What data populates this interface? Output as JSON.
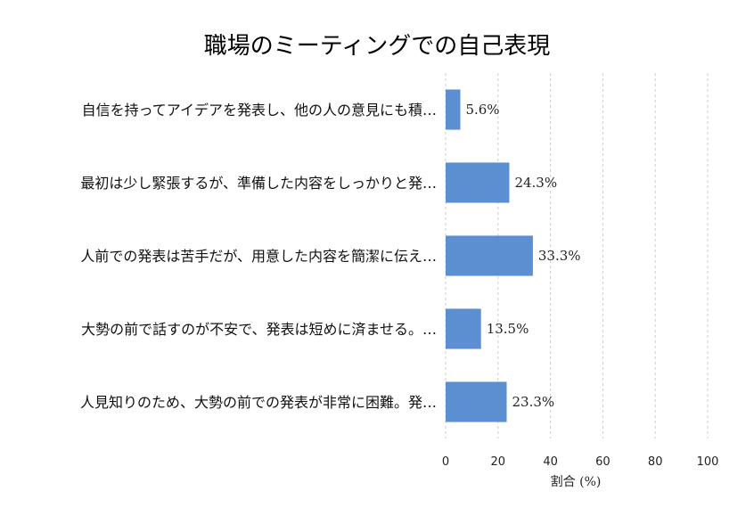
{
  "chart_data": {
    "type": "bar",
    "orientation": "horizontal",
    "title": "職場のミーティングでの自己表現",
    "xlabel": "割合 (%)",
    "ylabel": "",
    "xlim": [
      0,
      100
    ],
    "xticks": [
      0,
      20,
      40,
      60,
      80,
      100
    ],
    "grid": true,
    "bar_color": "#5b8fd2",
    "categories": [
      "自信を持ってアイデアを発表し、他の人の意見にも積…",
      "最初は少し緊張するが、準備した内容をしっかりと発…",
      "人前での発表は苦手だが、用意した内容を簡潔に伝え…",
      "大勢の前で話すのが不安で、発表は短めに済ませる。…",
      "人見知りのため、大勢の前での発表が非常に困難。発…"
    ],
    "values": [
      5.6,
      24.3,
      33.3,
      13.5,
      23.3
    ],
    "data_labels": [
      "5.6%",
      "24.3%",
      "33.3%",
      "13.5%",
      "23.3%"
    ]
  }
}
